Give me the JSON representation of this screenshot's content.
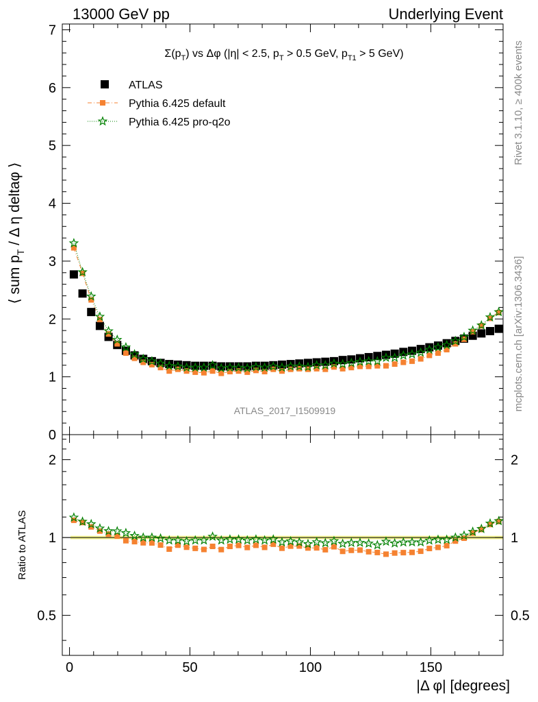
{
  "header": {
    "left": "13000 GeV pp",
    "right": "Underlying Event"
  },
  "side_labels": {
    "rivet": "Rivet 3.1.10, ≥ 400k events",
    "mcplots": "mcplots.cern.ch [arXiv:1306.3436]"
  },
  "watermark": "ATLAS_2017_I1509919",
  "colors": {
    "atlas": "#000000",
    "pythia_default": "#f58231",
    "pythia_proq2o": "#008000",
    "band": "#f0f08c"
  },
  "chart_data": [
    {
      "type": "scatter",
      "title": "Σ(p_T) vs Δφ (|η| < 2.5, p_T > 0.5 GeV, p_T1 > 5 GeV)",
      "ylabel": "⟨ sum p_T / Δ η deltaφ ⟩",
      "xlabel": "",
      "xlim": [
        -3,
        180
      ],
      "ylim": [
        0,
        7.1
      ],
      "yticks": [
        0,
        1,
        2,
        3,
        4,
        5,
        6,
        7
      ],
      "legend_position": "top-left",
      "x": [
        1.8,
        5.4,
        9.0,
        12.6,
        16.2,
        19.8,
        23.4,
        27.0,
        30.6,
        34.2,
        37.8,
        41.4,
        45.0,
        48.6,
        52.2,
        55.8,
        59.4,
        63.0,
        66.6,
        70.2,
        73.8,
        77.4,
        81.0,
        84.6,
        88.2,
        91.8,
        95.4,
        99.0,
        102.6,
        106.2,
        109.8,
        113.4,
        117.0,
        120.6,
        124.2,
        127.8,
        131.4,
        135.0,
        138.6,
        142.2,
        145.8,
        149.4,
        153.0,
        156.6,
        160.2,
        163.8,
        167.4,
        171.0,
        174.6,
        178.2
      ],
      "series": [
        {
          "name": "ATLAS",
          "marker": "square",
          "values": [
            2.77,
            2.44,
            2.12,
            1.88,
            1.69,
            1.55,
            1.45,
            1.37,
            1.31,
            1.27,
            1.24,
            1.22,
            1.21,
            1.2,
            1.19,
            1.19,
            1.19,
            1.18,
            1.18,
            1.18,
            1.18,
            1.19,
            1.19,
            1.2,
            1.21,
            1.22,
            1.23,
            1.24,
            1.25,
            1.26,
            1.27,
            1.29,
            1.3,
            1.32,
            1.34,
            1.36,
            1.38,
            1.4,
            1.43,
            1.45,
            1.48,
            1.51,
            1.54,
            1.58,
            1.62,
            1.66,
            1.71,
            1.75,
            1.79,
            1.83
          ]
        },
        {
          "name": "Pythia 6.425 default",
          "marker": "square-dashed",
          "values": [
            3.23,
            2.79,
            2.33,
            1.99,
            1.74,
            1.57,
            1.41,
            1.32,
            1.25,
            1.21,
            1.16,
            1.1,
            1.13,
            1.1,
            1.08,
            1.07,
            1.1,
            1.06,
            1.09,
            1.1,
            1.08,
            1.11,
            1.09,
            1.13,
            1.1,
            1.13,
            1.14,
            1.13,
            1.14,
            1.13,
            1.17,
            1.14,
            1.16,
            1.18,
            1.18,
            1.19,
            1.19,
            1.22,
            1.25,
            1.27,
            1.31,
            1.37,
            1.41,
            1.47,
            1.57,
            1.65,
            1.78,
            1.88,
            2.01,
            2.11
          ]
        },
        {
          "name": "Pythia 6.425 pro-q2o",
          "marker": "star-dotted",
          "values": [
            3.31,
            2.81,
            2.39,
            2.04,
            1.79,
            1.64,
            1.51,
            1.39,
            1.31,
            1.27,
            1.23,
            1.19,
            1.18,
            1.16,
            1.16,
            1.16,
            1.2,
            1.15,
            1.16,
            1.16,
            1.15,
            1.17,
            1.16,
            1.18,
            1.16,
            1.18,
            1.18,
            1.17,
            1.2,
            1.2,
            1.23,
            1.22,
            1.24,
            1.26,
            1.27,
            1.27,
            1.33,
            1.33,
            1.37,
            1.39,
            1.42,
            1.47,
            1.51,
            1.55,
            1.62,
            1.69,
            1.8,
            1.89,
            2.03,
            2.12
          ]
        }
      ]
    },
    {
      "type": "scatter",
      "title": "",
      "ylabel": "Ratio to ATLAS",
      "xlabel": "|Δ φ| [degrees]",
      "xlim": [
        -3,
        180
      ],
      "ylim": [
        0.35,
        2.5
      ],
      "yticks": [
        0.5,
        1,
        2
      ],
      "xticks": [
        0,
        50,
        100,
        150
      ],
      "reference_band": [
        0.985,
        1.015
      ],
      "x": [
        1.8,
        5.4,
        9.0,
        12.6,
        16.2,
        19.8,
        23.4,
        27.0,
        30.6,
        34.2,
        37.8,
        41.4,
        45.0,
        48.6,
        52.2,
        55.8,
        59.4,
        63.0,
        66.6,
        70.2,
        73.8,
        77.4,
        81.0,
        84.6,
        88.2,
        91.8,
        95.4,
        99.0,
        102.6,
        106.2,
        109.8,
        113.4,
        117.0,
        120.6,
        124.2,
        127.8,
        131.4,
        135.0,
        138.6,
        142.2,
        145.8,
        149.4,
        153.0,
        156.6,
        160.2,
        163.8,
        167.4,
        171.0,
        174.6,
        178.2
      ],
      "series": [
        {
          "name": "Pythia 6.425 default",
          "marker": "square",
          "values": [
            1.166,
            1.143,
            1.099,
            1.059,
            1.03,
            1.013,
            0.972,
            0.964,
            0.954,
            0.953,
            0.935,
            0.902,
            0.934,
            0.917,
            0.908,
            0.899,
            0.924,
            0.898,
            0.924,
            0.932,
            0.915,
            0.933,
            0.916,
            0.942,
            0.909,
            0.926,
            0.927,
            0.911,
            0.912,
            0.897,
            0.921,
            0.884,
            0.892,
            0.894,
            0.881,
            0.875,
            0.862,
            0.871,
            0.874,
            0.876,
            0.885,
            0.907,
            0.916,
            0.93,
            0.969,
            0.994,
            1.041,
            1.074,
            1.123,
            1.153
          ]
        },
        {
          "name": "Pythia 6.425 pro-q2o",
          "marker": "star",
          "values": [
            1.195,
            1.152,
            1.127,
            1.085,
            1.059,
            1.058,
            1.041,
            1.015,
            1.0,
            1.0,
            0.992,
            0.975,
            0.975,
            0.967,
            0.975,
            0.975,
            1.008,
            0.975,
            0.983,
            0.983,
            0.975,
            0.983,
            0.975,
            0.983,
            0.959,
            0.967,
            0.959,
            0.944,
            0.96,
            0.952,
            0.969,
            0.946,
            0.954,
            0.955,
            0.948,
            0.934,
            0.964,
            0.95,
            0.958,
            0.959,
            0.959,
            0.974,
            0.981,
            0.981,
            1.0,
            1.018,
            1.053,
            1.08,
            1.134,
            1.158
          ]
        }
      ]
    }
  ]
}
